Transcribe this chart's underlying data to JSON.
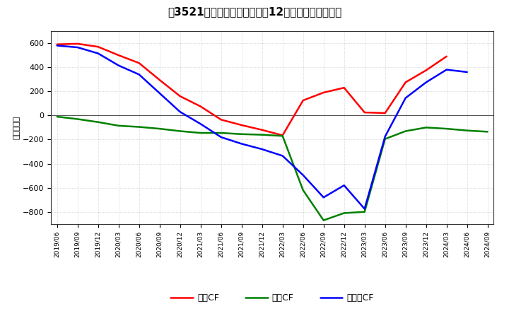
{
  "title": "[㔡] キャッシュフローの12か月移動合計の推移",
  "title_bracket": "　3521　キャッシュフローの12か月移動合計の推移",
  "ylabel": "（百万円）",
  "ylim": [
    -900,
    700
  ],
  "yticks": [
    -800,
    -600,
    -400,
    -200,
    0,
    200,
    400,
    600
  ],
  "background_color": "#ffffff",
  "plot_bg_color": "#ffffff",
  "grid_color": "#aaaaaa",
  "dates": [
    "2019/06",
    "2019/09",
    "2019/12",
    "2020/03",
    "2020/06",
    "2020/09",
    "2020/12",
    "2021/03",
    "2021/06",
    "2021/09",
    "2021/12",
    "2022/03",
    "2022/06",
    "2022/09",
    "2022/12",
    "2023/03",
    "2023/06",
    "2023/09",
    "2023/12",
    "2024/03",
    "2024/06",
    "2024/09"
  ],
  "operating_cf": [
    590,
    595,
    570,
    500,
    435,
    295,
    160,
    75,
    -35,
    -80,
    -120,
    -165,
    125,
    190,
    230,
    25,
    20,
    275,
    375,
    490,
    null,
    null
  ],
  "investing_cf": [
    -10,
    -30,
    -55,
    -85,
    -95,
    -110,
    -130,
    -145,
    -145,
    -155,
    -160,
    -170,
    -620,
    -870,
    -810,
    -800,
    -195,
    -130,
    -100,
    -110,
    -125,
    -135
  ],
  "free_cf": [
    580,
    565,
    515,
    415,
    340,
    185,
    30,
    -70,
    -180,
    -235,
    -280,
    -335,
    -495,
    -680,
    -580,
    -775,
    -175,
    145,
    275,
    380,
    360,
    null
  ],
  "legend_labels": [
    "営業CF",
    "投資CF",
    "フリーCF"
  ],
  "line_colors": [
    "#ff0000",
    "#008000",
    "#0000ff"
  ],
  "line_width": 1.8,
  "title_text": "3521｝キャッシュフローの12か月移動合計の推移"
}
